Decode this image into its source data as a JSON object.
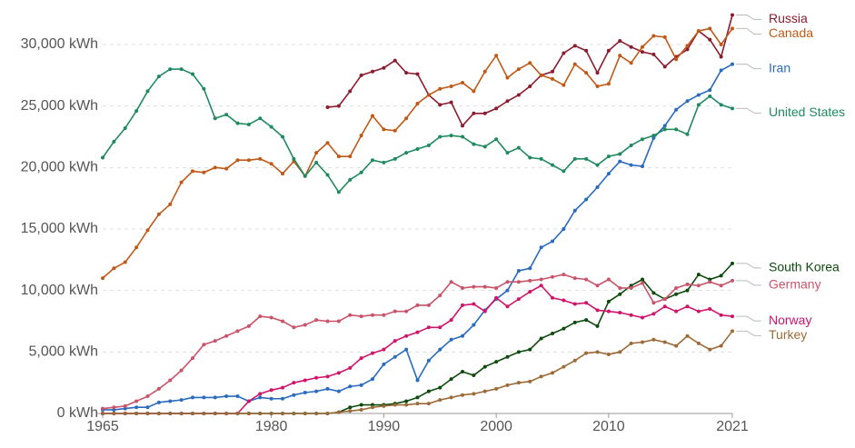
{
  "chart_data": {
    "type": "line",
    "x": [
      1965,
      1966,
      1967,
      1968,
      1969,
      1970,
      1971,
      1972,
      1973,
      1974,
      1975,
      1976,
      1977,
      1978,
      1979,
      1980,
      1981,
      1982,
      1983,
      1984,
      1985,
      1986,
      1987,
      1988,
      1989,
      1990,
      1991,
      1992,
      1993,
      1994,
      1995,
      1996,
      1997,
      1998,
      1999,
      2000,
      2001,
      2002,
      2003,
      2004,
      2005,
      2006,
      2007,
      2008,
      2009,
      2010,
      2011,
      2012,
      2013,
      2014,
      2015,
      2016,
      2017,
      2018,
      2019,
      2020,
      2021
    ],
    "xlim": [
      1965,
      2021
    ],
    "xticks": [
      1965,
      1980,
      1990,
      2000,
      2010,
      2021
    ],
    "ylim": [
      0,
      33000
    ],
    "yticks": [
      {
        "value": 0,
        "label": "0 kWh"
      },
      {
        "value": 5000,
        "label": "5,000 kWh"
      },
      {
        "value": 10000,
        "label": "10,000 kWh"
      },
      {
        "value": 15000,
        "label": "15,000 kWh"
      },
      {
        "value": 20000,
        "label": "20,000 kWh"
      },
      {
        "value": 25000,
        "label": "25,000 kWh"
      },
      {
        "value": 30000,
        "label": "30,000 kWh"
      }
    ],
    "grid": true,
    "series": [
      {
        "name": "Russia",
        "color": "#8c1b2e",
        "values": [
          null,
          null,
          null,
          null,
          null,
          null,
          null,
          null,
          null,
          null,
          null,
          null,
          null,
          null,
          null,
          null,
          null,
          null,
          null,
          null,
          24900,
          25000,
          26200,
          27500,
          27800,
          28100,
          28700,
          27700,
          27600,
          25900,
          25100,
          25300,
          23400,
          24400,
          24400,
          24800,
          25400,
          25900,
          26600,
          27500,
          27800,
          29300,
          29900,
          29500,
          27700,
          29500,
          30300,
          29800,
          29400,
          29200,
          28200,
          29000,
          29600,
          31100,
          30400,
          29000,
          32400
        ]
      },
      {
        "name": "Canada",
        "color": "#c05917",
        "values": [
          11000,
          11800,
          12300,
          13500,
          14900,
          16200,
          17000,
          18800,
          19700,
          19600,
          20000,
          19900,
          20600,
          20600,
          20700,
          20300,
          19500,
          20500,
          19300,
          21200,
          22000,
          20900,
          20900,
          22600,
          24200,
          23100,
          23000,
          24000,
          25200,
          25900,
          26400,
          26600,
          26900,
          26200,
          27800,
          29100,
          27300,
          28000,
          28500,
          27500,
          27200,
          26700,
          28400,
          27700,
          26600,
          26800,
          29100,
          28500,
          29800,
          30700,
          30600,
          28800,
          29900,
          31100,
          31300,
          30000,
          31300
        ]
      },
      {
        "name": "Iran",
        "color": "#2a6bbf",
        "values": [
          300,
          300,
          400,
          500,
          500,
          900,
          1000,
          1100,
          1300,
          1300,
          1300,
          1400,
          1400,
          1000,
          1300,
          1200,
          1200,
          1500,
          1700,
          1800,
          2000,
          1800,
          2200,
          2300,
          2800,
          4000,
          4600,
          5200,
          2700,
          4300,
          5200,
          6000,
          6300,
          7200,
          8400,
          9300,
          10000,
          11600,
          11800,
          13500,
          14000,
          15000,
          16500,
          17400,
          18400,
          19500,
          20500,
          20200,
          20100,
          22400,
          23400,
          24700,
          25400,
          25900,
          26300,
          27900,
          28400
        ]
      },
      {
        "name": "United States",
        "color": "#1f8a5f",
        "values": [
          20800,
          22100,
          23200,
          24600,
          26200,
          27400,
          28000,
          28000,
          27600,
          26400,
          24000,
          24300,
          23600,
          23500,
          24000,
          23300,
          22500,
          20700,
          19300,
          20400,
          19400,
          18000,
          19000,
          19600,
          20600,
          20400,
          20700,
          21200,
          21500,
          21800,
          22500,
          22600,
          22500,
          21900,
          21700,
          22300,
          21200,
          21600,
          20800,
          20700,
          20200,
          19700,
          20700,
          20700,
          20200,
          20900,
          21100,
          21800,
          22300,
          22600,
          23100,
          23100,
          22700,
          25100,
          25800,
          25100,
          24800
        ]
      },
      {
        "name": "South Korea",
        "color": "#0e4a0e",
        "values": [
          0,
          0,
          0,
          0,
          0,
          0,
          0,
          0,
          0,
          0,
          0,
          0,
          0,
          0,
          0,
          0,
          0,
          0,
          0,
          0,
          0,
          100,
          500,
          700,
          700,
          700,
          800,
          1000,
          1300,
          1800,
          2100,
          2800,
          3400,
          3100,
          3800,
          4200,
          4600,
          5000,
          5200,
          6100,
          6500,
          6900,
          7400,
          7600,
          7100,
          9100,
          9700,
          10400,
          10900,
          9800,
          9300,
          9700,
          10000,
          11300,
          10900,
          11200,
          12200
        ]
      },
      {
        "name": "Germany",
        "color": "#c9546a",
        "values": [
          400,
          500,
          600,
          1000,
          1400,
          2000,
          2700,
          3500,
          4500,
          5600,
          5900,
          6300,
          6700,
          7100,
          7900,
          7800,
          7500,
          7000,
          7200,
          7600,
          7500,
          7500,
          8000,
          7900,
          8000,
          8000,
          8300,
          8300,
          8800,
          8800,
          9600,
          10700,
          10200,
          10300,
          10300,
          10200,
          10700,
          10700,
          10800,
          10900,
          11100,
          11300,
          11000,
          10900,
          10400,
          10900,
          10200,
          10200,
          10600,
          9000,
          9300,
          10200,
          10500,
          10400,
          10700,
          10400,
          10800
        ]
      },
      {
        "name": "Norway",
        "color": "#d0146b",
        "values": [
          0,
          0,
          0,
          0,
          0,
          0,
          0,
          0,
          0,
          0,
          0,
          0,
          0,
          1000,
          1600,
          1900,
          2100,
          2500,
          2700,
          2900,
          3000,
          3300,
          3700,
          4500,
          4900,
          5200,
          5900,
          6300,
          6600,
          7000,
          7000,
          7600,
          8800,
          8900,
          8300,
          9400,
          8700,
          9300,
          9900,
          10400,
          9400,
          9200,
          8900,
          9000,
          8400,
          8300,
          8200,
          8000,
          7800,
          8100,
          8700,
          8300,
          8700,
          8300,
          8500,
          8000,
          7900
        ]
      },
      {
        "name": "Turkey",
        "color": "#9b6a38",
        "values": [
          0,
          0,
          0,
          0,
          0,
          0,
          0,
          0,
          0,
          0,
          0,
          0,
          0,
          0,
          0,
          0,
          0,
          0,
          0,
          0,
          0,
          100,
          200,
          300,
          500,
          600,
          700,
          700,
          800,
          800,
          1100,
          1300,
          1500,
          1600,
          1800,
          2000,
          2300,
          2500,
          2600,
          3000,
          3300,
          3800,
          4300,
          4900,
          5000,
          4800,
          5000,
          5700,
          5800,
          6000,
          5800,
          5500,
          6300,
          5700,
          5200,
          5500,
          6700
        ]
      }
    ]
  }
}
